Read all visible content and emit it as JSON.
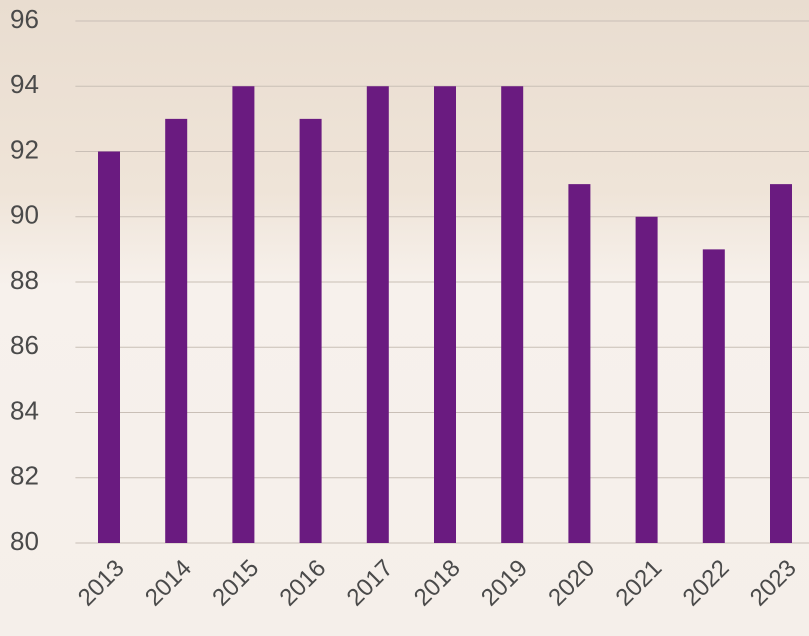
{
  "chart_data": {
    "type": "bar",
    "categories": [
      "2013",
      "2014",
      "2015",
      "2016",
      "2017",
      "2018",
      "2019",
      "2020",
      "2021",
      "2022",
      "2023"
    ],
    "values": [
      92,
      93,
      94,
      93,
      94,
      94,
      94,
      91,
      90,
      89,
      91
    ],
    "color": "#6a1b80",
    "ylim": [
      80,
      96
    ],
    "yticks": [
      80,
      82,
      84,
      86,
      88,
      90,
      92,
      94,
      96
    ],
    "grid": true
  }
}
